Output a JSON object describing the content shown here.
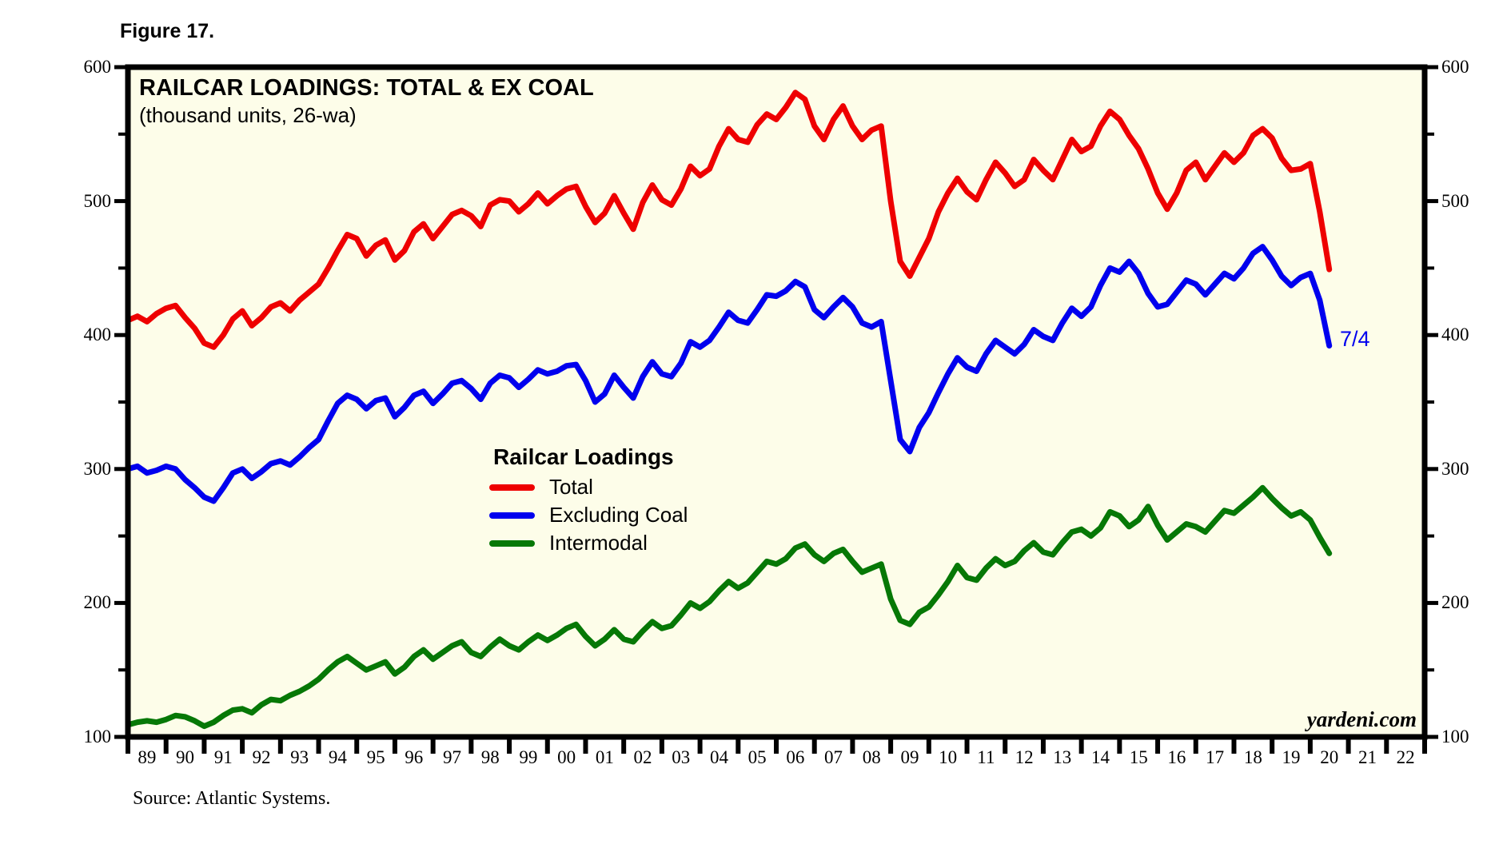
{
  "figure_label": "Figure 17.",
  "watermark": "yardeni.com",
  "source_note": "Source: Atlantic Systems.",
  "chart_data": {
    "type": "line",
    "title": "RAILCAR LOADINGS: TOTAL & EX COAL",
    "subtitle": "(thousand units, 26-wa)",
    "legend_title": "Railcar Loadings",
    "legend_position": "center-left-inside",
    "grid": false,
    "plot_bg": "#FDFDE9",
    "axis_color": "#000000",
    "ylim": [
      100,
      600
    ],
    "y_major_ticks": [
      100,
      200,
      300,
      400,
      500,
      600
    ],
    "y_minor_ticks": [
      150,
      250,
      350,
      450,
      550
    ],
    "x_axis_years": [
      "89",
      "90",
      "91",
      "92",
      "93",
      "94",
      "95",
      "96",
      "97",
      "98",
      "99",
      "00",
      "01",
      "02",
      "03",
      "04",
      "05",
      "06",
      "07",
      "08",
      "09",
      "10",
      "11",
      "12",
      "13",
      "14",
      "15",
      "16",
      "17",
      "18",
      "19",
      "20",
      "21",
      "22"
    ],
    "x_start_year": 1989,
    "x_step_years": 0.25,
    "end_label": {
      "text": "7/4",
      "series": "Excluding Coal",
      "color": "#0000EE"
    },
    "series": [
      {
        "name": "Total",
        "color": "#EE0000",
        "values": [
          411,
          414,
          410,
          416,
          420,
          422,
          413,
          405,
          394,
          391,
          400,
          412,
          418,
          407,
          413,
          421,
          424,
          418,
          426,
          432,
          438,
          450,
          463,
          475,
          472,
          459,
          467,
          471,
          456,
          463,
          477,
          483,
          472,
          481,
          490,
          493,
          489,
          481,
          497,
          501,
          500,
          492,
          498,
          506,
          498,
          504,
          509,
          511,
          496,
          484,
          491,
          504,
          491,
          479,
          499,
          512,
          501,
          497,
          509,
          526,
          519,
          524,
          541,
          554,
          546,
          544,
          557,
          565,
          561,
          570,
          581,
          576,
          556,
          546,
          561,
          571,
          556,
          546,
          553,
          556,
          500,
          455,
          444,
          458,
          472,
          492,
          506,
          517,
          507,
          501,
          516,
          529,
          521,
          511,
          516,
          531,
          523,
          516,
          531,
          546,
          537,
          541,
          556,
          567,
          561,
          549,
          539,
          524,
          506,
          494,
          506,
          523,
          529,
          516,
          526,
          536,
          529,
          536,
          549,
          554,
          547,
          532,
          523,
          524,
          528,
          492,
          449
        ]
      },
      {
        "name": "Excluding Coal",
        "color": "#0000EE",
        "values": [
          300,
          302,
          297,
          299,
          302,
          300,
          292,
          286,
          279,
          276,
          286,
          297,
          300,
          293,
          298,
          304,
          306,
          303,
          309,
          316,
          322,
          336,
          349,
          355,
          352,
          345,
          351,
          353,
          339,
          346,
          355,
          358,
          349,
          356,
          364,
          366,
          360,
          352,
          364,
          370,
          368,
          361,
          367,
          374,
          371,
          373,
          377,
          378,
          366,
          350,
          356,
          370,
          361,
          353,
          369,
          380,
          371,
          369,
          379,
          395,
          391,
          396,
          406,
          417,
          411,
          409,
          419,
          430,
          429,
          433,
          440,
          436,
          419,
          413,
          421,
          428,
          421,
          409,
          406,
          410,
          366,
          322,
          313,
          331,
          342,
          357,
          371,
          383,
          376,
          373,
          386,
          396,
          391,
          386,
          393,
          404,
          399,
          396,
          409,
          420,
          414,
          421,
          437,
          450,
          447,
          455,
          446,
          431,
          421,
          423,
          432,
          441,
          438,
          430,
          438,
          446,
          442,
          450,
          461,
          466,
          456,
          444,
          437,
          443,
          446,
          426,
          392
        ]
      },
      {
        "name": "Intermodal",
        "color": "#067806",
        "values": [
          109,
          111,
          112,
          111,
          113,
          116,
          115,
          112,
          108,
          111,
          116,
          120,
          121,
          118,
          124,
          128,
          127,
          131,
          134,
          138,
          143,
          150,
          156,
          160,
          155,
          150,
          153,
          156,
          147,
          152,
          160,
          165,
          158,
          163,
          168,
          171,
          163,
          160,
          167,
          173,
          168,
          165,
          171,
          176,
          172,
          176,
          181,
          184,
          175,
          168,
          173,
          180,
          173,
          171,
          179,
          186,
          181,
          183,
          191,
          200,
          196,
          201,
          209,
          216,
          211,
          215,
          223,
          231,
          229,
          233,
          241,
          244,
          236,
          231,
          237,
          240,
          231,
          223,
          226,
          229,
          203,
          187,
          184,
          193,
          197,
          206,
          216,
          228,
          219,
          217,
          226,
          233,
          228,
          231,
          239,
          245,
          238,
          236,
          245,
          253,
          255,
          250,
          256,
          268,
          265,
          257,
          262,
          272,
          258,
          247,
          253,
          259,
          257,
          253,
          261,
          269,
          267,
          273,
          279,
          286,
          278,
          271,
          265,
          268,
          262,
          249,
          237
        ]
      }
    ]
  }
}
